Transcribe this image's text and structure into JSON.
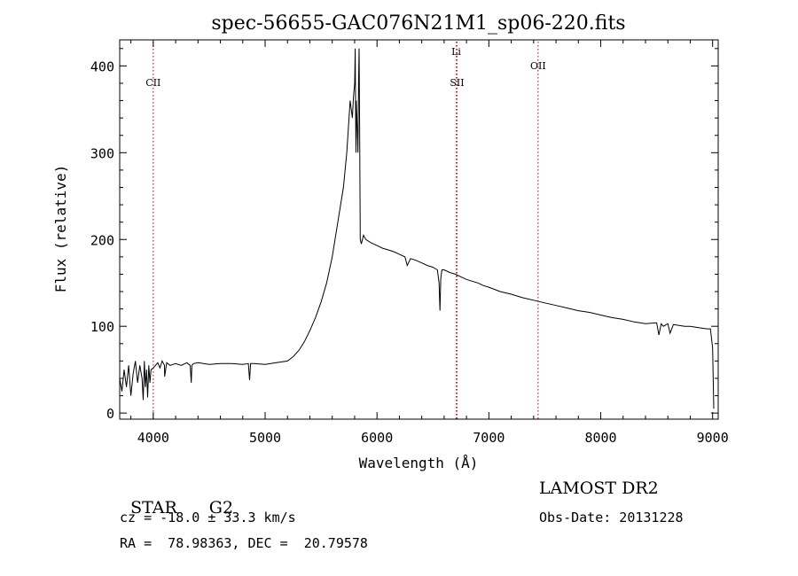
{
  "chart_data": {
    "type": "line",
    "title": "spec-56655-GAC076N21M1_sp06-220.fits",
    "xlabel": "Wavelength (Å)",
    "ylabel": "Flux (relative)",
    "xlim": [
      3700,
      9050
    ],
    "ylim": [
      -7,
      430
    ],
    "xticks": [
      4000,
      5000,
      6000,
      7000,
      8000,
      9000
    ],
    "yticks": [
      0,
      100,
      200,
      300,
      400
    ],
    "grid": false,
    "line_color": "#000000",
    "marker_color": "#e02020",
    "series": [
      {
        "x": [
          3700,
          3720,
          3740,
          3760,
          3780,
          3800,
          3820,
          3840,
          3860,
          3880,
          3900,
          3910,
          3920,
          3930,
          3940,
          3950,
          3960,
          3970,
          3980,
          4000,
          4020,
          4040,
          4060,
          4080,
          4100,
          4102,
          4120,
          4150,
          4200,
          4250,
          4300,
          4330,
          4340,
          4345,
          4360,
          4400,
          4500,
          4600,
          4700,
          4800,
          4850,
          4861,
          4870,
          4900,
          5000,
          5100,
          5200,
          5250,
          5300,
          5350,
          5400,
          5450,
          5500,
          5550,
          5600,
          5650,
          5700,
          5730,
          5760,
          5780,
          5790,
          5800,
          5805,
          5810,
          5812,
          5815,
          5820,
          5830,
          5835,
          5840,
          5845,
          5850,
          5860,
          5880,
          5900,
          5950,
          6000,
          6050,
          6100,
          6150,
          6200,
          6250,
          6270,
          6300,
          6350,
          6400,
          6450,
          6500,
          6540,
          6555,
          6563,
          6570,
          6580,
          6600,
          6650,
          6700,
          6750,
          6800,
          6850,
          6900,
          6950,
          7000,
          7100,
          7200,
          7300,
          7400,
          7500,
          7600,
          7700,
          7800,
          7900,
          8000,
          8100,
          8200,
          8300,
          8400,
          8500,
          8520,
          8540,
          8560,
          8600,
          8620,
          8650,
          8700,
          8750,
          8800,
          8850,
          8900,
          8950,
          8980,
          9000,
          9010
        ],
        "y": [
          40,
          25,
          50,
          30,
          55,
          20,
          45,
          60,
          35,
          55,
          40,
          15,
          60,
          30,
          50,
          18,
          55,
          35,
          50,
          52,
          55,
          58,
          52,
          60,
          55,
          42,
          58,
          55,
          57,
          55,
          58,
          55,
          35,
          55,
          57,
          58,
          56,
          57,
          57,
          56,
          57,
          38,
          57,
          57,
          56,
          58,
          60,
          65,
          72,
          82,
          95,
          110,
          128,
          150,
          180,
          220,
          260,
          300,
          360,
          340,
          365,
          380,
          420,
          330,
          300,
          360,
          340,
          300,
          380,
          420,
          330,
          200,
          195,
          205,
          200,
          196,
          193,
          190,
          188,
          186,
          183,
          180,
          170,
          178,
          176,
          173,
          170,
          168,
          165,
          150,
          118,
          155,
          165,
          165,
          162,
          160,
          157,
          154,
          152,
          150,
          147,
          145,
          140,
          137,
          133,
          130,
          127,
          124,
          121,
          118,
          116,
          113,
          110,
          108,
          105,
          103,
          104,
          90,
          103,
          100,
          103,
          92,
          102,
          101,
          100,
          100,
          99,
          98,
          97,
          97,
          75,
          5
        ],
        "name": ""
      }
    ],
    "markers": [
      {
        "x": 4000,
        "label": "CII"
      },
      {
        "x": 6708,
        "label": "Li"
      },
      {
        "x": 6716,
        "label": "SII"
      },
      {
        "x": 7440,
        "label": "OII"
      }
    ]
  },
  "info": {
    "class_label": "STAR",
    "subclass": "G2",
    "cz_text": "cz = -18.0 ± 33.3 km/s",
    "coords_text": "RA =  78.98363, DEC =  20.79578",
    "survey": "LAMOST DR2",
    "obs_date_text": "Obs-Date: 20131228"
  }
}
